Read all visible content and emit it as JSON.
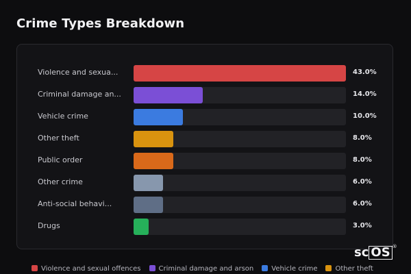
{
  "title": "Crime Types Breakdown",
  "logo": {
    "prefix": "sc",
    "boxed": "OS",
    "mark": "®"
  },
  "chart_data": {
    "type": "bar",
    "orientation": "horizontal",
    "title": "Crime Types Breakdown",
    "xlim": [
      0,
      43
    ],
    "categories": [
      "Violence and sexua...",
      "Criminal damage an...",
      "Vehicle crime",
      "Other theft",
      "Public order",
      "Other crime",
      "Anti-social behavi...",
      "Drugs"
    ],
    "values": [
      43.0,
      14.0,
      10.0,
      8.0,
      8.0,
      6.0,
      6.0,
      3.0
    ],
    "value_labels": [
      "43.0%",
      "14.0%",
      "10.0%",
      "8.0%",
      "8.0%",
      "6.0%",
      "6.0%",
      "3.0%"
    ],
    "colors": [
      "#d64545",
      "#7b4fd6",
      "#3b7be0",
      "#d9930f",
      "#d9691a",
      "#8797ad",
      "#5f6e86",
      "#26b05a"
    ],
    "legend": {
      "placement": "bottom",
      "entries": [
        {
          "label": "Violence and sexual offences",
          "color": "#d64545"
        },
        {
          "label": "Criminal damage and arson",
          "color": "#7b4fd6"
        },
        {
          "label": "Vehicle crime",
          "color": "#3b7be0"
        },
        {
          "label": "Other theft",
          "color": "#d9930f"
        }
      ]
    }
  }
}
